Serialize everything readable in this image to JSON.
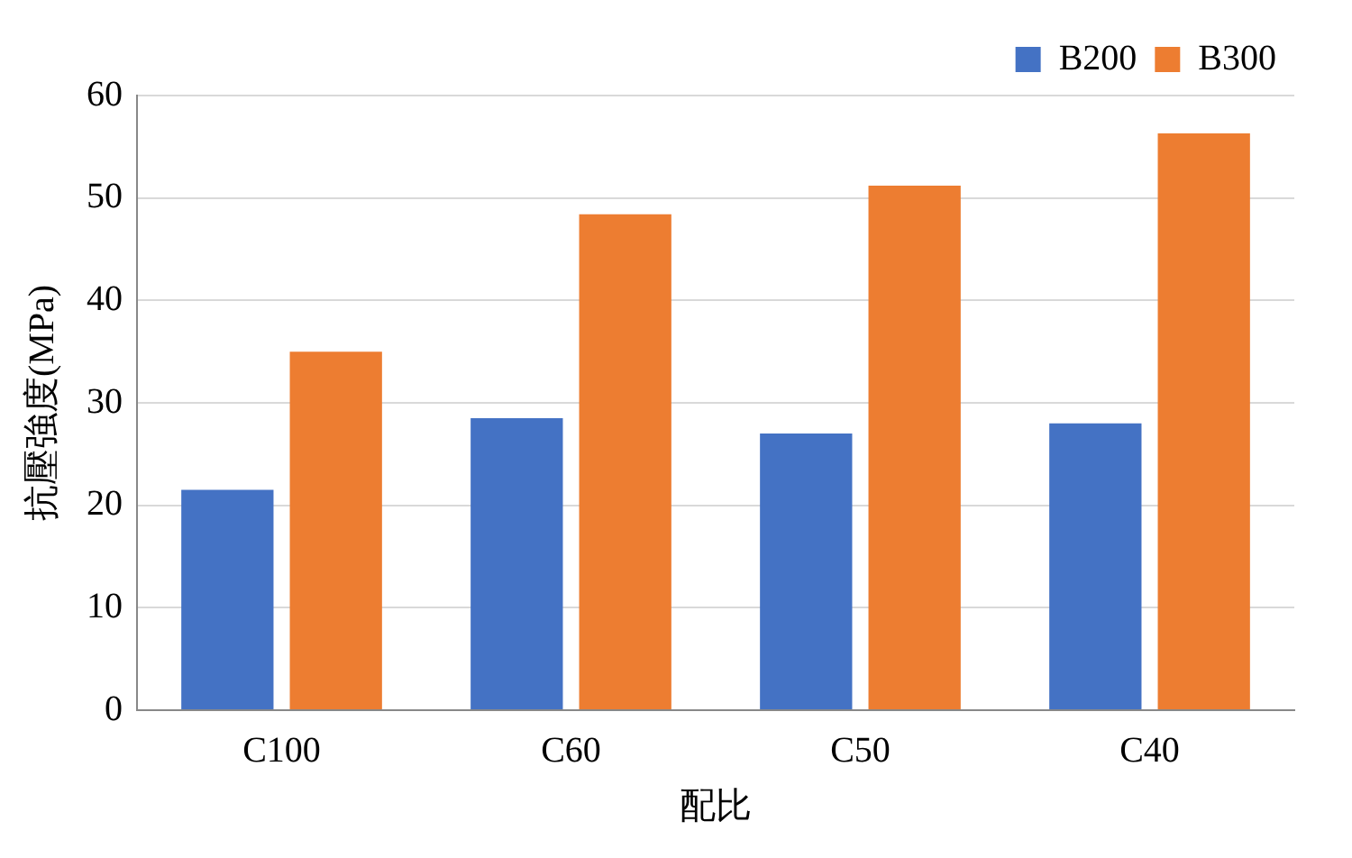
{
  "chart_data": {
    "type": "bar",
    "xlabel": "配比",
    "ylabel": "抗壓強度(MPa)",
    "categories": [
      "C100",
      "C60",
      "C50",
      "C40"
    ],
    "series": [
      {
        "name": "B200",
        "color": "#4472c4",
        "values": [
          21.5,
          28.5,
          27,
          28
        ]
      },
      {
        "name": "B300",
        "color": "#ed7d31",
        "values": [
          35,
          48.4,
          51.2,
          56.3
        ]
      }
    ],
    "ylim": [
      0,
      60
    ],
    "yticks": [
      0,
      10,
      20,
      30,
      40,
      50,
      60
    ],
    "grid": "y",
    "legend": "top right"
  }
}
